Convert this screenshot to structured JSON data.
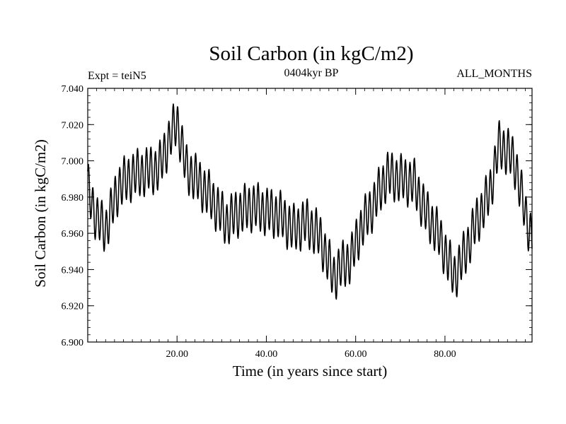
{
  "chart_data": {
    "type": "line",
    "title": "Soil Carbon (in kgC/m2)",
    "subtitle": "0404kyr BP",
    "left_label": "Expt = teiN5",
    "right_label": "ALL_MONTHS",
    "xlabel": "Time (in years since start)",
    "ylabel": "Soil Carbon (in kgC/m2)",
    "xlim": [
      0,
      99.5
    ],
    "ylim": [
      6.9,
      7.04
    ],
    "x_ticks": [
      20,
      40,
      60,
      80
    ],
    "x_tick_labels": [
      "20.00",
      "40.00",
      "60.00",
      "80.00"
    ],
    "y_ticks": [
      6.9,
      6.92,
      6.94,
      6.96,
      6.98,
      7.0,
      7.02,
      7.04
    ],
    "y_tick_labels": [
      "6.900",
      "6.920",
      "6.940",
      "6.960",
      "6.980",
      "7.000",
      "7.020",
      "7.040"
    ],
    "series": [
      {
        "name": "Soil Carbon",
        "seasonal_amplitude": 0.012,
        "trend_x": [
          0,
          2,
          4,
          7,
          10,
          13,
          16,
          18,
          20,
          22,
          25,
          28,
          31,
          34,
          37,
          40,
          43,
          46,
          49,
          52,
          55,
          57,
          59,
          61,
          64,
          67,
          70,
          73,
          76,
          78,
          80,
          82,
          84,
          87,
          90,
          92,
          94,
          96,
          98,
          99.5
        ],
        "trend_y": [
          6.985,
          6.968,
          6.962,
          6.986,
          6.992,
          6.994,
          6.996,
          7.01,
          7.022,
          6.996,
          6.988,
          6.978,
          6.966,
          6.972,
          6.975,
          6.972,
          6.97,
          6.962,
          6.966,
          6.958,
          6.936,
          6.942,
          6.946,
          6.962,
          6.976,
          6.992,
          6.99,
          6.988,
          6.97,
          6.962,
          6.95,
          6.936,
          6.946,
          6.966,
          6.982,
          7.008,
          7.006,
          6.996,
          6.97,
          6.958
        ]
      }
    ]
  }
}
